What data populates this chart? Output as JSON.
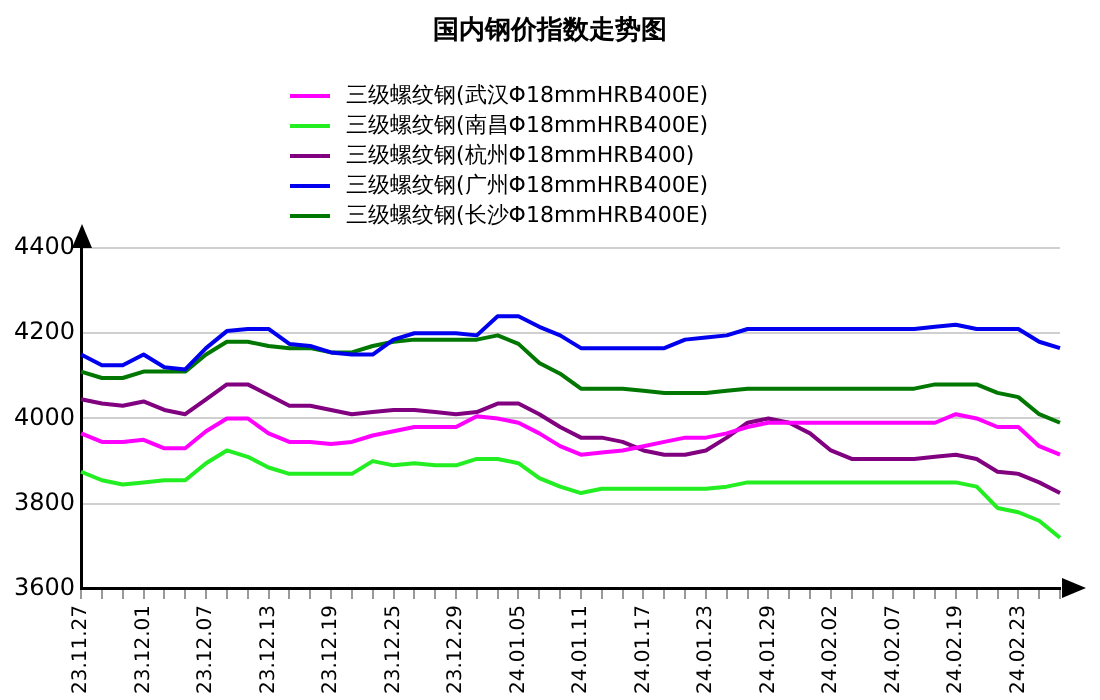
{
  "chart_data": {
    "type": "line",
    "title": "国内钢价指数走势图",
    "categories": [
      "23.11.27",
      null,
      null,
      "23.12.01",
      null,
      null,
      "23.12.07",
      null,
      null,
      "23.12.13",
      null,
      null,
      "23.12.19",
      null,
      null,
      "23.12.25",
      null,
      null,
      "23.12.29",
      null,
      null,
      "24.01.05",
      null,
      null,
      "24.01.11",
      null,
      null,
      "24.01.17",
      null,
      null,
      "24.01.23",
      null,
      null,
      "24.01.29",
      null,
      null,
      "24.02.02",
      null,
      null,
      "24.02.07",
      null,
      null,
      "24.02.19",
      null,
      null,
      "24.02.23",
      null,
      null
    ],
    "series": [
      {
        "name": "三级螺纹钢(武汉Φ18mmHRB400E)",
        "color": "#ff00ff",
        "values": [
          3965,
          3945,
          3945,
          3950,
          3930,
          3930,
          3970,
          4000,
          4000,
          3965,
          3945,
          3945,
          3940,
          3945,
          3960,
          3970,
          3980,
          3980,
          3980,
          4005,
          4000,
          3990,
          3965,
          3935,
          3915,
          3920,
          3925,
          3935,
          3945,
          3955,
          3955,
          3965,
          3980,
          3990,
          3990,
          3990,
          3990,
          3990,
          3990,
          3990,
          3990,
          3990,
          4010,
          4000,
          3980,
          3980,
          3935,
          3915
        ]
      },
      {
        "name": "三级螺纹钢(南昌Φ18mmHRB400E)",
        "color": "#22ee22",
        "values": [
          3875,
          3855,
          3845,
          3850,
          3855,
          3855,
          3895,
          3925,
          3910,
          3885,
          3870,
          3870,
          3870,
          3870,
          3900,
          3890,
          3895,
          3890,
          3890,
          3905,
          3905,
          3895,
          3860,
          3840,
          3825,
          3835,
          3835,
          3835,
          3835,
          3835,
          3835,
          3840,
          3850,
          3850,
          3850,
          3850,
          3850,
          3850,
          3850,
          3850,
          3850,
          3850,
          3850,
          3840,
          3790,
          3780,
          3760,
          3720
        ]
      },
      {
        "name": "三级螺纹钢(杭州Φ18mmHRB400)",
        "color": "#800080",
        "values": [
          4045,
          4035,
          4030,
          4040,
          4020,
          4010,
          4045,
          4080,
          4080,
          4055,
          4030,
          4030,
          4020,
          4010,
          4015,
          4020,
          4020,
          4015,
          4010,
          4015,
          4035,
          4035,
          4010,
          3980,
          3955,
          3955,
          3945,
          3925,
          3915,
          3915,
          3925,
          3955,
          3990,
          4000,
          3990,
          3965,
          3925,
          3905,
          3905,
          3905,
          3905,
          3910,
          3915,
          3905,
          3875,
          3870,
          3850,
          3825
        ]
      },
      {
        "name": "三级螺纹钢(广州Φ18mmHRB400E)",
        "color": "#0000ee",
        "values": [
          4150,
          4125,
          4125,
          4150,
          4120,
          4115,
          4165,
          4205,
          4210,
          4210,
          4175,
          4170,
          4155,
          4150,
          4150,
          4185,
          4200,
          4200,
          4200,
          4195,
          4240,
          4240,
          4215,
          4195,
          4165,
          4165,
          4165,
          4165,
          4165,
          4185,
          4190,
          4195,
          4210,
          4210,
          4210,
          4210,
          4210,
          4210,
          4210,
          4210,
          4210,
          4215,
          4220,
          4210,
          4210,
          4210,
          4180,
          4165
        ]
      },
      {
        "name": "三级螺纹钢(长沙Φ18mmHRB400E)",
        "color": "#007700",
        "values": [
          4110,
          4095,
          4095,
          4110,
          4110,
          4110,
          4150,
          4180,
          4180,
          4170,
          4165,
          4165,
          4155,
          4155,
          4170,
          4180,
          4185,
          4185,
          4185,
          4185,
          4195,
          4175,
          4130,
          4105,
          4070,
          4070,
          4070,
          4065,
          4060,
          4060,
          4060,
          4065,
          4070,
          4070,
          4070,
          4070,
          4070,
          4070,
          4070,
          4070,
          4070,
          4080,
          4080,
          4080,
          4060,
          4050,
          4010,
          3990
        ]
      }
    ],
    "ylim": [
      3600,
      4400
    ],
    "yticks": [
      3600,
      3800,
      4000,
      4200,
      4400
    ],
    "grid": "y",
    "legend": "top",
    "marker": "none",
    "line_style": "solid"
  }
}
